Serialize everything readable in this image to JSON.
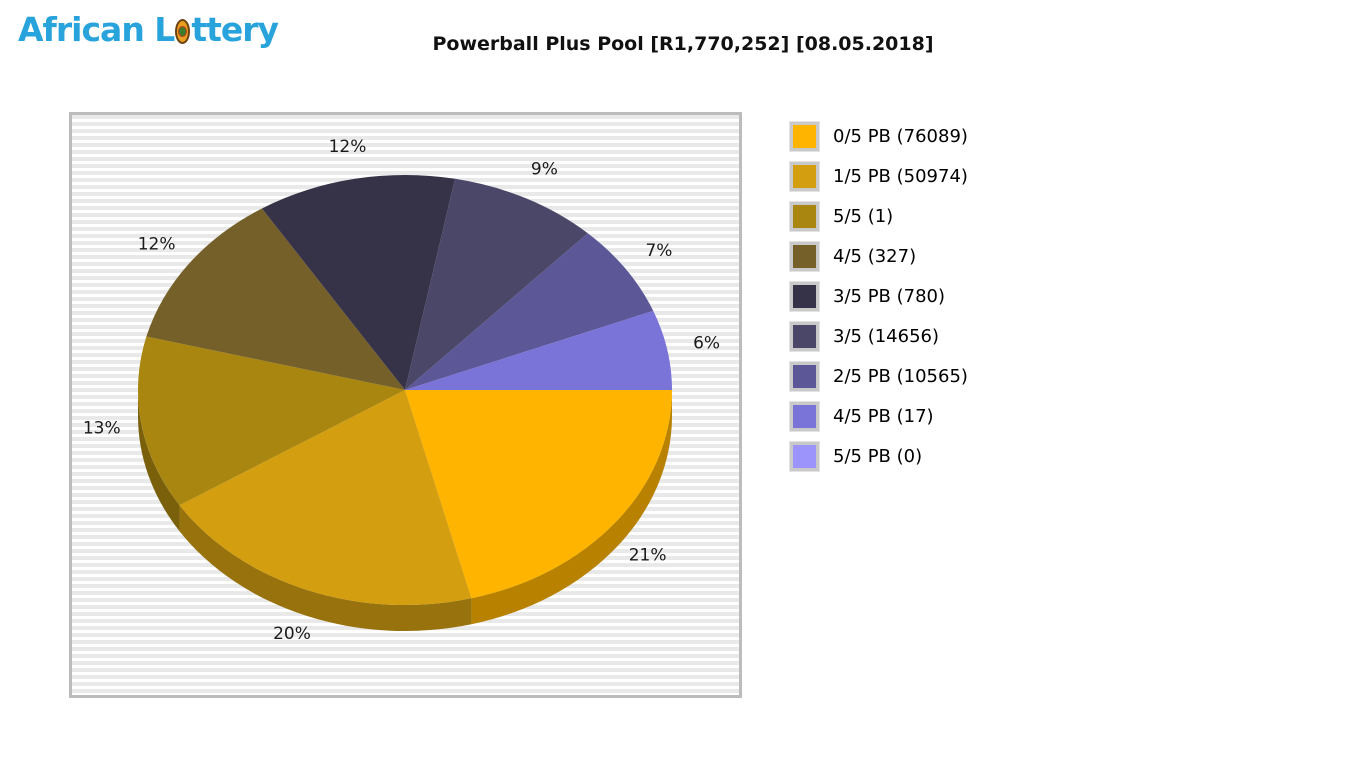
{
  "logo": {
    "text_before_ball": "African L",
    "text_after_ball": "ttery",
    "color": "#29A3DC",
    "ball_color": "#E8A01E"
  },
  "title": "Powerball Plus Pool [R1,770,252] [08.05.2018]",
  "chart_data": {
    "type": "pie",
    "style": "3d",
    "title": "Powerball Plus Pool [R1,770,252] [08.05.2018]",
    "start_angle_deg": 0,
    "direction": "clockwise",
    "legend_position": "right",
    "slices": [
      {
        "label": "0/5 PB",
        "count": 76089,
        "percent": 21,
        "color": "#FFB400"
      },
      {
        "label": "1/5 PB",
        "count": 50974,
        "percent": 20,
        "color": "#D39E10"
      },
      {
        "label": "5/5",
        "count": 1,
        "percent": 13,
        "color": "#A9860F"
      },
      {
        "label": "4/5",
        "count": 327,
        "percent": 12,
        "color": "#75602A"
      },
      {
        "label": "3/5 PB",
        "count": 780,
        "percent": 12,
        "color": "#363349"
      },
      {
        "label": "3/5",
        "count": 14656,
        "percent": 9,
        "color": "#4B4769"
      },
      {
        "label": "2/5 PB",
        "count": 10565,
        "percent": 7,
        "color": "#5C5796"
      },
      {
        "label": "4/5 PB",
        "count": 17,
        "percent": 6,
        "color": "#7B74D8"
      },
      {
        "label": "5/5 PB",
        "count": 0,
        "percent": 0,
        "color": "#9C94FA"
      }
    ]
  },
  "legend": {
    "items": [
      {
        "text": "0/5 PB (76089)",
        "color": "#FFB400"
      },
      {
        "text": "1/5 PB (50974)",
        "color": "#D39E10"
      },
      {
        "text": "5/5 (1)",
        "color": "#A9860F"
      },
      {
        "text": "4/5 (327)",
        "color": "#75602A"
      },
      {
        "text": "3/5 PB (780)",
        "color": "#363349"
      },
      {
        "text": "3/5 (14656)",
        "color": "#4B4769"
      },
      {
        "text": "2/5 PB (10565)",
        "color": "#5C5796"
      },
      {
        "text": "4/5 PB (17)",
        "color": "#7B74D8"
      },
      {
        "text": "5/5 PB (0)",
        "color": "#9C94FA"
      }
    ]
  }
}
